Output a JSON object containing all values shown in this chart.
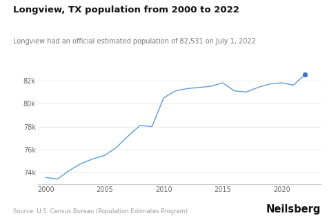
{
  "title": "Longview, TX population from 2000 to 2022",
  "subtitle": "Longview had an official estimated population of 82,531 on July 1, 2022",
  "source": "Source: U.S. Census Bureau (Population Estimates Program)",
  "brand": "Neilsberg",
  "years": [
    2000,
    2001,
    2002,
    2003,
    2004,
    2005,
    2006,
    2007,
    2008,
    2009,
    2010,
    2011,
    2012,
    2013,
    2014,
    2015,
    2016,
    2017,
    2018,
    2019,
    2020,
    2021,
    2022
  ],
  "population": [
    73580,
    73450,
    74200,
    74800,
    75200,
    75500,
    76200,
    77200,
    78100,
    78000,
    80500,
    81100,
    81300,
    81400,
    81500,
    81800,
    81100,
    81000,
    81400,
    81700,
    81800,
    81600,
    82531
  ],
  "line_color": "#5b9bd5",
  "dot_color": "#4472c4",
  "bg_color": "#ffffff",
  "grid_color": "#e5e5e5",
  "axis_color": "#cccccc",
  "title_fontsize": 9.5,
  "subtitle_fontsize": 7.0,
  "tick_fontsize": 7.0,
  "source_fontsize": 6.0,
  "brand_fontsize": 10.5,
  "ylim": [
    73000,
    83500
  ],
  "yticks": [
    74000,
    76000,
    78000,
    80000,
    82000
  ],
  "xticks": [
    2000,
    2005,
    2010,
    2015,
    2020
  ],
  "xlim": [
    1999.3,
    2023.3
  ]
}
